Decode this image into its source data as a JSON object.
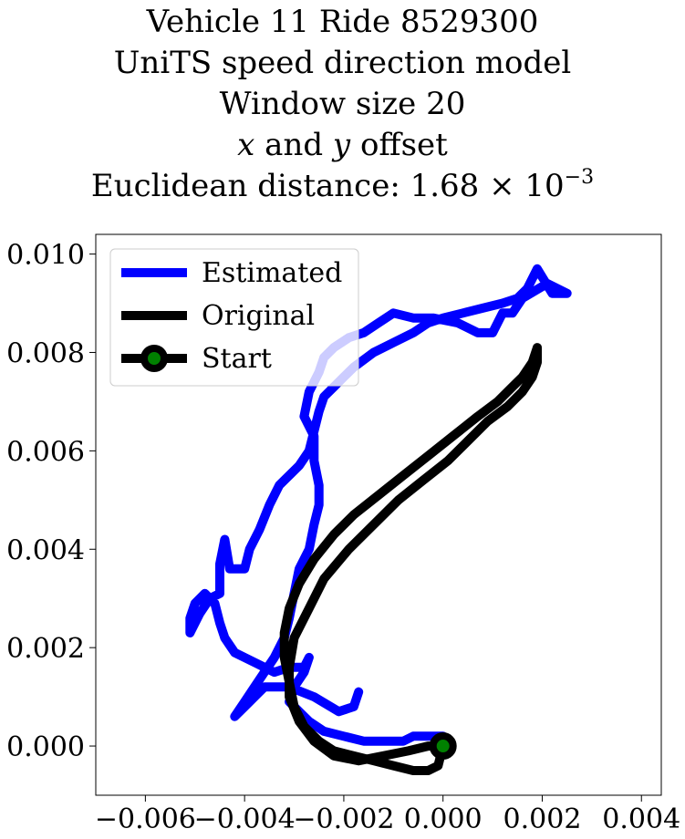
{
  "title": {
    "line1": "Vehicle 11 Ride 8529300",
    "line2": "UniTS speed direction model",
    "line3": "Window size 20",
    "line4_x": "x",
    "line4_mid": "and",
    "line4_y": "y",
    "line4_rest": "offset",
    "line5_prefix": "Euclidean distance: 1.68 × 10",
    "line5_exponent": "−3"
  },
  "chart_data": {
    "type": "line",
    "title": "Vehicle 11 Ride 8529300 UniTS speed direction model Window size 20 x and y offset Euclidean distance: 1.68 × 10^-3",
    "xlabel": "",
    "ylabel": "",
    "xlim": [
      -0.007,
      0.0044
    ],
    "ylim": [
      -0.001,
      0.0104
    ],
    "xticks": [
      -0.006,
      -0.004,
      -0.002,
      0.0,
      0.002,
      0.004
    ],
    "xtick_labels": [
      "−0.006",
      "−0.004",
      "−0.002",
      "0.000",
      "0.002",
      "0.004"
    ],
    "yticks": [
      0.0,
      0.002,
      0.004,
      0.006,
      0.008,
      0.01
    ],
    "ytick_labels": [
      "0.000",
      "0.002",
      "0.004",
      "0.006",
      "0.008",
      "0.010"
    ],
    "grid": false,
    "legend_position": "upper-left",
    "series": [
      {
        "name": "Estimated",
        "color": "#0000ff",
        "x": [
          0.0,
          -0.0003,
          -0.0006,
          -0.0008,
          -0.0012,
          -0.0016,
          -0.002,
          -0.0024,
          -0.0027,
          -0.0029,
          -0.0031,
          -0.003,
          -0.0028,
          -0.0027,
          -0.0028,
          -0.0031,
          -0.0034,
          -0.0038,
          -0.0042,
          -0.0044,
          -0.0045,
          -0.0046,
          -0.0048,
          -0.005,
          -0.0051,
          -0.0051,
          -0.0049,
          -0.0047,
          -0.0045,
          -0.0045,
          -0.0044,
          -0.0043,
          -0.004,
          -0.0039,
          -0.0037,
          -0.0035,
          -0.0033,
          -0.0031,
          -0.0029,
          -0.0027,
          -0.0026,
          -0.0025,
          -0.0024,
          -0.0022,
          -0.002,
          -0.0018,
          -0.0014,
          -0.001,
          -0.0006,
          -0.0003,
          0.0,
          0.0004,
          0.0008,
          0.0012,
          0.0015,
          0.0017,
          0.0019,
          0.0022,
          0.0025,
          0.0021,
          0.0016,
          0.0014,
          0.0012,
          0.001,
          0.0007,
          0.0003,
          -0.0002,
          -0.0006,
          -0.001,
          -0.0013,
          -0.0016,
          -0.0019,
          -0.0022,
          -0.0024,
          -0.0025,
          -0.0027,
          -0.0028,
          -0.0026,
          -0.0026,
          -0.0025,
          -0.0025,
          -0.0026,
          -0.0027,
          -0.0029,
          -0.003,
          -0.0031,
          -0.0032,
          -0.0034,
          -0.0036,
          -0.0038,
          -0.004,
          -0.0042,
          -0.004,
          -0.0036,
          -0.0031,
          -0.0026,
          -0.0021,
          -0.0018,
          -0.0017
        ],
        "y": [
          0.0002,
          0.0002,
          0.0002,
          0.0001,
          0.0001,
          0.0001,
          0.0002,
          0.0003,
          0.0005,
          0.0007,
          0.0009,
          0.0012,
          0.0015,
          0.0018,
          0.0016,
          0.0016,
          0.0015,
          0.0017,
          0.0019,
          0.0022,
          0.0025,
          0.0029,
          0.0031,
          0.0029,
          0.0026,
          0.0023,
          0.0027,
          0.003,
          0.0031,
          0.0037,
          0.0042,
          0.0036,
          0.0036,
          0.004,
          0.0044,
          0.0049,
          0.0053,
          0.0055,
          0.0057,
          0.006,
          0.0064,
          0.0068,
          0.0071,
          0.0073,
          0.0075,
          0.0077,
          0.008,
          0.0082,
          0.0084,
          0.0086,
          0.0087,
          0.0088,
          0.0089,
          0.009,
          0.0091,
          0.0093,
          0.0097,
          0.0092,
          0.0092,
          0.0094,
          0.0091,
          0.0088,
          0.0088,
          0.0084,
          0.0084,
          0.0086,
          0.0087,
          0.0087,
          0.0088,
          0.0086,
          0.0084,
          0.0083,
          0.0081,
          0.0079,
          0.0076,
          0.0072,
          0.0067,
          0.0063,
          0.0058,
          0.0053,
          0.0049,
          0.0045,
          0.004,
          0.0036,
          0.0031,
          0.0026,
          0.0022,
          0.0018,
          0.0015,
          0.0012,
          0.0009,
          0.0006,
          0.0008,
          0.0012,
          0.0012,
          0.001,
          0.0007,
          0.0008,
          0.0011
        ]
      },
      {
        "name": "Original",
        "color": "#000000",
        "x": [
          0.0,
          -0.0001,
          -0.0003,
          -0.0006,
          -0.001,
          -0.0014,
          -0.0018,
          -0.0022,
          -0.0025,
          -0.0028,
          -0.003,
          -0.0031,
          -0.0032,
          -0.0032,
          -0.0031,
          -0.0029,
          -0.0026,
          -0.0022,
          -0.0018,
          -0.0013,
          -0.0008,
          -0.0003,
          0.0002,
          0.0007,
          0.0011,
          0.0014,
          0.0016,
          0.0018,
          0.0019,
          0.0019,
          0.0018,
          0.0016,
          0.0013,
          0.0009,
          0.0005,
          0.0001,
          -0.0004,
          -0.0009,
          -0.0014,
          -0.0019,
          -0.0024,
          -0.0027,
          -0.003,
          -0.0031,
          -0.0031,
          -0.0029,
          -0.0026,
          -0.0022,
          -0.0017,
          -0.0012,
          -0.0007,
          -0.0003,
          0.0
        ],
        "y": [
          0.0,
          -0.0004,
          -0.0005,
          -0.0005,
          -0.0004,
          -0.0003,
          -0.0002,
          -0.0001,
          0.0001,
          0.0004,
          0.0008,
          0.0013,
          0.0018,
          0.0023,
          0.0028,
          0.0033,
          0.0038,
          0.0043,
          0.0047,
          0.0051,
          0.0055,
          0.0059,
          0.0063,
          0.0067,
          0.007,
          0.0073,
          0.0075,
          0.0078,
          0.0081,
          0.0078,
          0.0075,
          0.0072,
          0.0069,
          0.0066,
          0.0062,
          0.0058,
          0.0054,
          0.005,
          0.0045,
          0.004,
          0.0034,
          0.0028,
          0.0022,
          0.0016,
          0.001,
          0.0005,
          0.0001,
          -0.0002,
          -0.0003,
          -0.0002,
          -0.0001,
          0.0,
          0.0
        ]
      },
      {
        "name": "Start",
        "color": "#000000",
        "marker_face": "#008000",
        "x": [
          0.0
        ],
        "y": [
          0.0
        ]
      }
    ]
  },
  "colors": {
    "estimated": "#0000ff",
    "original": "#000000",
    "start_marker_face": "#008000",
    "start_marker_edge": "#000000"
  }
}
